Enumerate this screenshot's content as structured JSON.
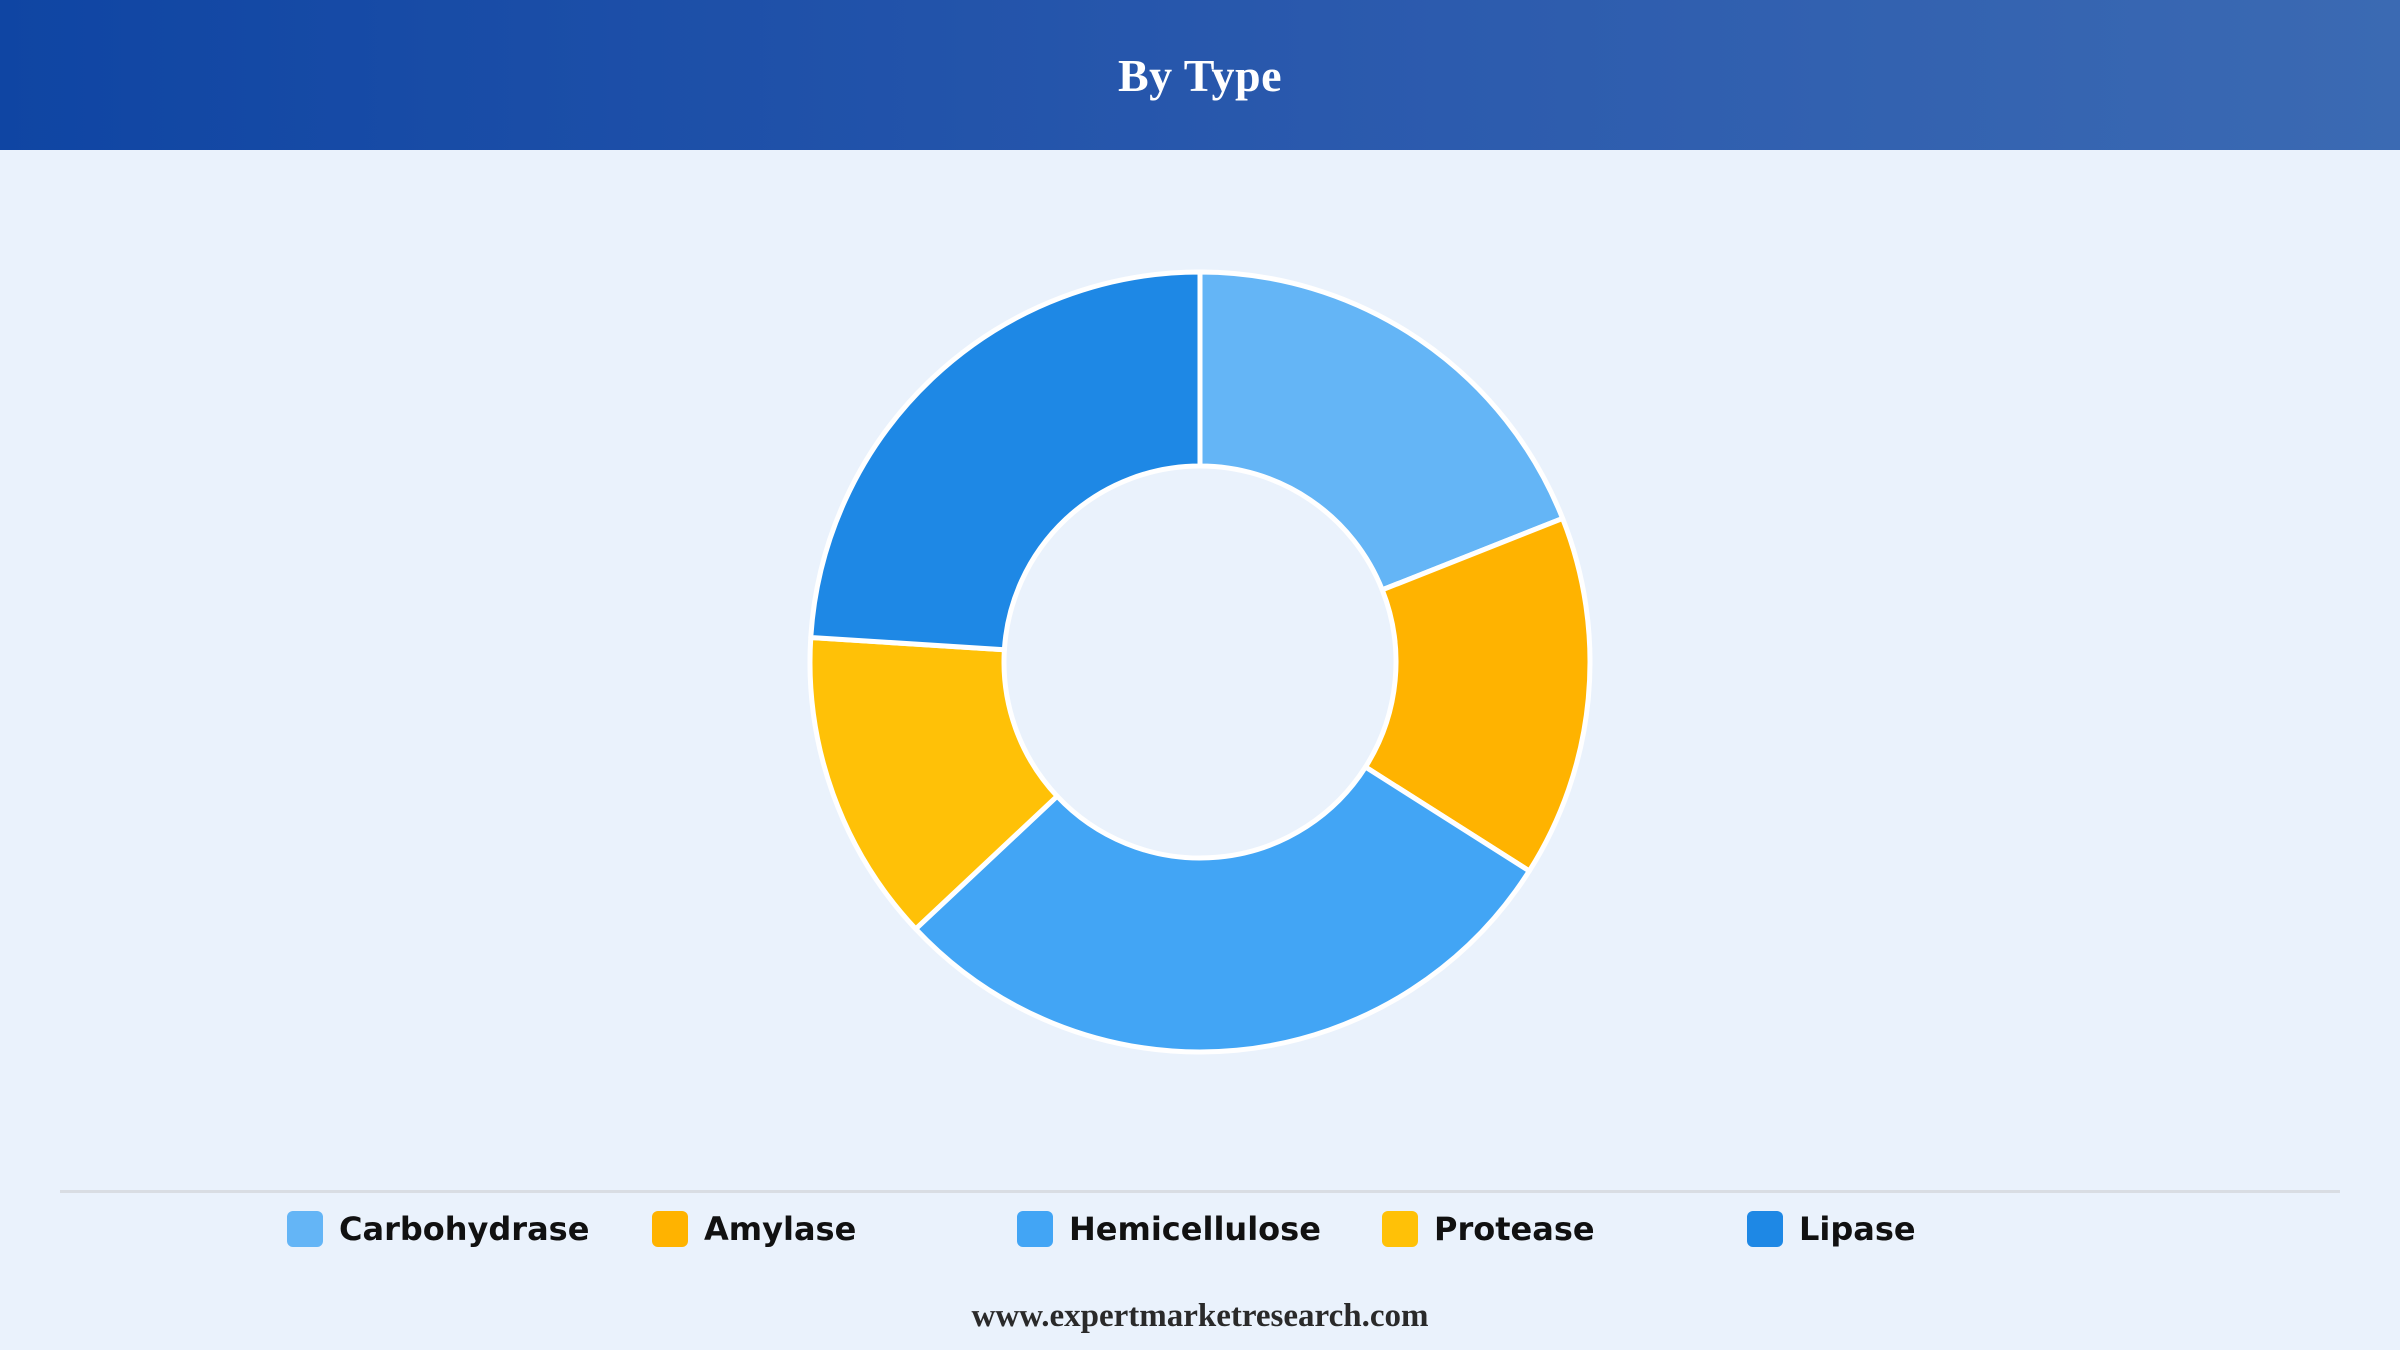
{
  "header": {
    "title": "By Type"
  },
  "footer": {
    "website": "www.expertmarketresearch.com"
  },
  "colors": {
    "header_gradient": [
      "#0f45a3",
      "#3b6ab3"
    ],
    "background": "#eaf2fc",
    "slice_stroke": "#ffffff"
  },
  "chart_data": {
    "type": "pie",
    "donut": true,
    "title": "By Type",
    "legend_placement": "bottom",
    "categories": [
      "Carbohydrase",
      "Amylase",
      "Hemicellulose",
      "Protease",
      "Lipase"
    ],
    "values": [
      19,
      15,
      29,
      13,
      24
    ],
    "colors": [
      "#64b5f6",
      "#ffb300",
      "#42a5f5",
      "#ffc107",
      "#1e88e5"
    ]
  }
}
